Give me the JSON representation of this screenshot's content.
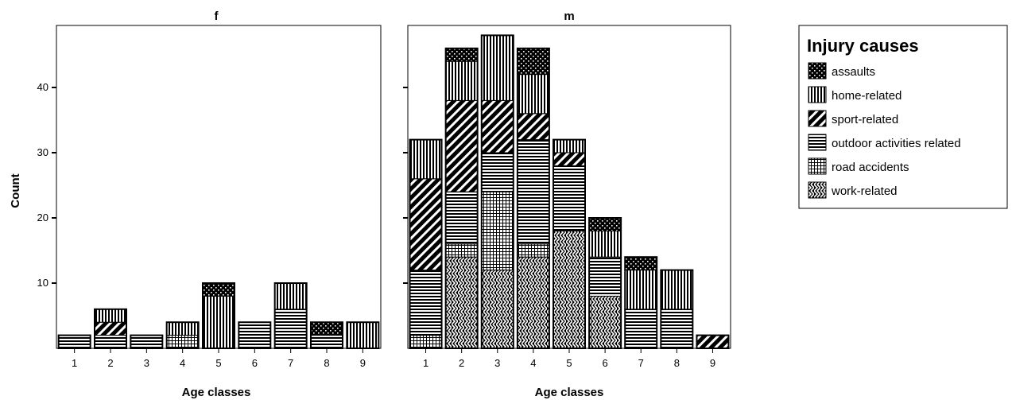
{
  "chart_data": {
    "type": "bar",
    "stacked": true,
    "ylabel": "Count",
    "xlabel": "Age classes",
    "ylim": [
      0,
      50
    ],
    "yticks": [
      10,
      20,
      30,
      40
    ],
    "categories": [
      "1",
      "2",
      "3",
      "4",
      "5",
      "6",
      "7",
      "8",
      "9"
    ],
    "legend": {
      "title": "Injury causes",
      "position": "right",
      "entries": [
        "assaults",
        "home-related",
        "sport-related",
        "outdoor activities related",
        "road accidents",
        "work-related"
      ]
    },
    "panels": [
      {
        "title": "f",
        "series": [
          {
            "name": "work-related",
            "pattern": "zigzag",
            "values": [
              0,
              0,
              0,
              0,
              0,
              0,
              0,
              0,
              0
            ]
          },
          {
            "name": "road accidents",
            "pattern": "grid",
            "values": [
              0,
              0,
              0,
              2,
              0,
              0,
              0,
              0,
              0
            ]
          },
          {
            "name": "outdoor activities related",
            "pattern": "hlines",
            "values": [
              2,
              2,
              2,
              0,
              0,
              4,
              6,
              2,
              0
            ]
          },
          {
            "name": "sport-related",
            "pattern": "diag",
            "values": [
              0,
              2,
              0,
              0,
              0,
              0,
              0,
              0,
              0
            ]
          },
          {
            "name": "home-related",
            "pattern": "vlines",
            "values": [
              0,
              2,
              0,
              2,
              8,
              0,
              4,
              0,
              4
            ]
          },
          {
            "name": "assaults",
            "pattern": "dots",
            "values": [
              0,
              0,
              0,
              0,
              2,
              0,
              0,
              2,
              0
            ]
          }
        ]
      },
      {
        "title": "m",
        "series": [
          {
            "name": "work-related",
            "pattern": "zigzag",
            "values": [
              0,
              14,
              12,
              14,
              18,
              8,
              0,
              0,
              0
            ]
          },
          {
            "name": "road accidents",
            "pattern": "grid",
            "values": [
              2,
              2,
              12,
              2,
              0,
              0,
              0,
              0,
              0
            ]
          },
          {
            "name": "outdoor activities related",
            "pattern": "hlines",
            "values": [
              10,
              8,
              6,
              16,
              10,
              6,
              6,
              6,
              0
            ]
          },
          {
            "name": "sport-related",
            "pattern": "diag",
            "values": [
              14,
              14,
              8,
              4,
              2,
              0,
              0,
              0,
              2
            ]
          },
          {
            "name": "home-related",
            "pattern": "vlines",
            "values": [
              6,
              6,
              10,
              6,
              2,
              4,
              6,
              6,
              0
            ]
          },
          {
            "name": "assaults",
            "pattern": "dots",
            "values": [
              0,
              2,
              0,
              4,
              0,
              2,
              2,
              0,
              0
            ]
          }
        ]
      }
    ]
  }
}
